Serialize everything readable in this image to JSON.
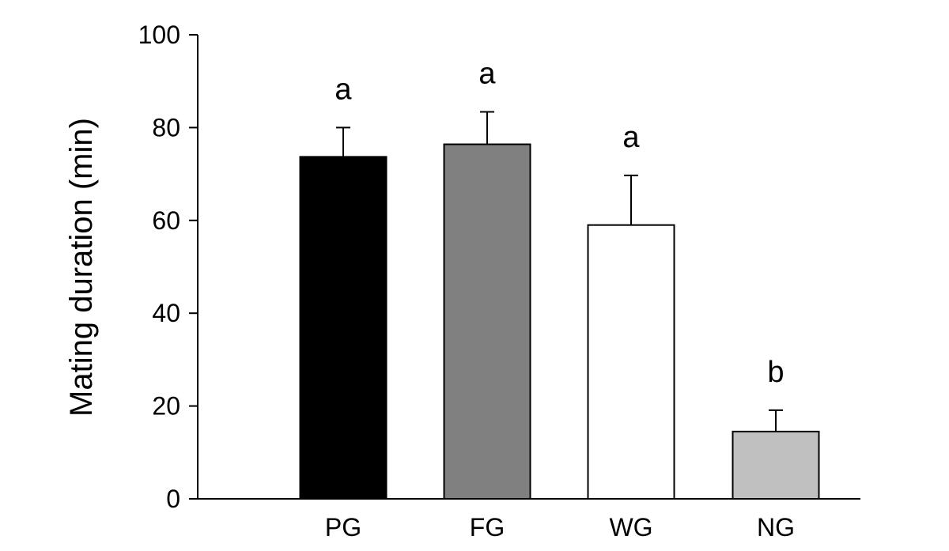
{
  "chart_data": {
    "type": "bar",
    "title": "",
    "xlabel": "",
    "ylabel": "Mating duration (min)",
    "ylim": [
      0,
      100
    ],
    "yticks": [
      0,
      20,
      40,
      60,
      80,
      100
    ],
    "categories": [
      "PG",
      "FG",
      "WG",
      "NG"
    ],
    "values": [
      73.7,
      76.4,
      59.0,
      14.5
    ],
    "error_plus": [
      6.3,
      7.0,
      10.7,
      4.6
    ],
    "significance_letters": [
      "a",
      "a",
      "a",
      "b"
    ],
    "bar_colors": [
      "#000000",
      "#808080",
      "#ffffff",
      "#c0c0c0"
    ],
    "edge_color": "#000000",
    "grid": false,
    "legend": "none"
  }
}
